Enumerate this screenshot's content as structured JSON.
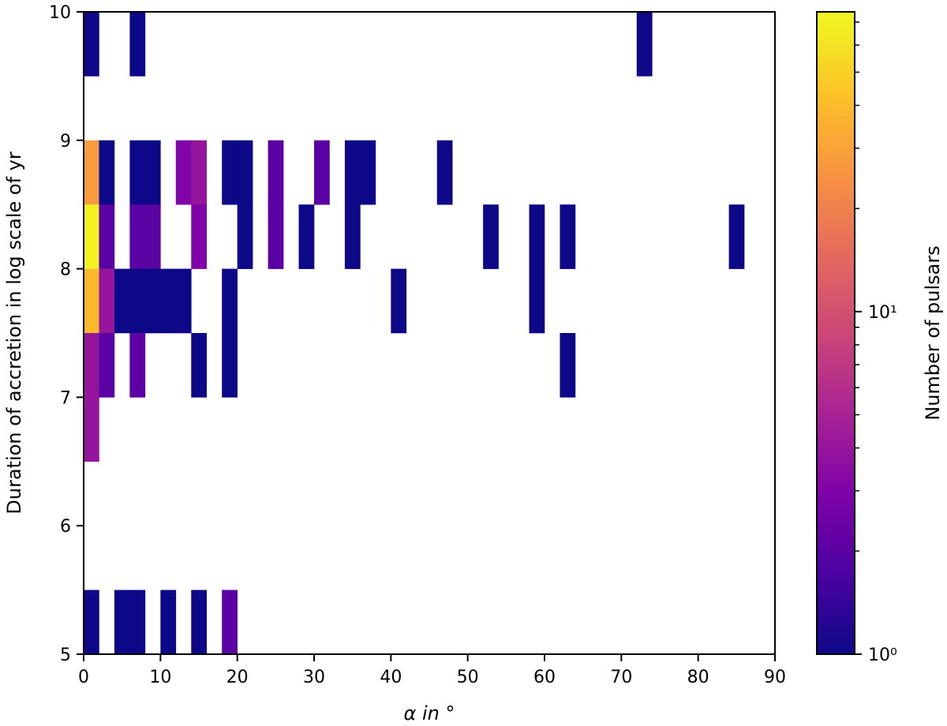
{
  "chart_data": {
    "type": "heatmap",
    "title": "",
    "xlabel": "α in °",
    "ylabel": "Duration of accretion in log scale of yr",
    "colorbar_label": "Number of pulsars",
    "colormap": "plasma",
    "color_scale": "log",
    "color_range": [
      1,
      75
    ],
    "colorbar_ticks": [
      {
        "value": 1,
        "label": "10⁰"
      },
      {
        "value": 10,
        "label": "10¹"
      }
    ],
    "xlim": [
      0,
      90
    ],
    "ylim": [
      5,
      10
    ],
    "xticks": [
      0,
      10,
      20,
      30,
      40,
      50,
      60,
      70,
      80,
      90
    ],
    "yticks": [
      5,
      6,
      7,
      8,
      9,
      10
    ],
    "x_bin_width": 2,
    "y_bin_width": 0.5,
    "grid": false,
    "cells": [
      {
        "x": 0,
        "y": 9.5,
        "count": 1
      },
      {
        "x": 6,
        "y": 9.5,
        "count": 1
      },
      {
        "x": 72,
        "y": 9.5,
        "count": 1
      },
      {
        "x": 0,
        "y": 8.5,
        "count": 28
      },
      {
        "x": 2,
        "y": 8.5,
        "count": 1
      },
      {
        "x": 6,
        "y": 8.5,
        "count": 1
      },
      {
        "x": 8,
        "y": 8.5,
        "count": 1
      },
      {
        "x": 12,
        "y": 8.5,
        "count": 3
      },
      {
        "x": 14,
        "y": 8.5,
        "count": 4
      },
      {
        "x": 18,
        "y": 8.5,
        "count": 1
      },
      {
        "x": 20,
        "y": 8.5,
        "count": 1
      },
      {
        "x": 24,
        "y": 8.5,
        "count": 2
      },
      {
        "x": 30,
        "y": 8.5,
        "count": 2
      },
      {
        "x": 34,
        "y": 8.5,
        "count": 1
      },
      {
        "x": 36,
        "y": 8.5,
        "count": 1
      },
      {
        "x": 46,
        "y": 8.5,
        "count": 1
      },
      {
        "x": 0,
        "y": 8.0,
        "count": 70
      },
      {
        "x": 2,
        "y": 8.0,
        "count": 2
      },
      {
        "x": 6,
        "y": 8.0,
        "count": 2
      },
      {
        "x": 8,
        "y": 8.0,
        "count": 2
      },
      {
        "x": 14,
        "y": 8.0,
        "count": 3
      },
      {
        "x": 20,
        "y": 8.0,
        "count": 1
      },
      {
        "x": 24,
        "y": 8.0,
        "count": 2
      },
      {
        "x": 28,
        "y": 8.0,
        "count": 1
      },
      {
        "x": 34,
        "y": 8.0,
        "count": 1
      },
      {
        "x": 52,
        "y": 8.0,
        "count": 1
      },
      {
        "x": 58,
        "y": 8.0,
        "count": 1
      },
      {
        "x": 62,
        "y": 8.0,
        "count": 1
      },
      {
        "x": 84,
        "y": 8.0,
        "count": 1
      },
      {
        "x": 0,
        "y": 7.5,
        "count": 40
      },
      {
        "x": 2,
        "y": 7.5,
        "count": 4
      },
      {
        "x": 4,
        "y": 7.5,
        "count": 1
      },
      {
        "x": 6,
        "y": 7.5,
        "count": 1
      },
      {
        "x": 8,
        "y": 7.5,
        "count": 1
      },
      {
        "x": 10,
        "y": 7.5,
        "count": 1
      },
      {
        "x": 12,
        "y": 7.5,
        "count": 1
      },
      {
        "x": 18,
        "y": 7.5,
        "count": 1
      },
      {
        "x": 40,
        "y": 7.5,
        "count": 1
      },
      {
        "x": 58,
        "y": 7.5,
        "count": 1
      },
      {
        "x": 0,
        "y": 7.0,
        "count": 4
      },
      {
        "x": 2,
        "y": 7.0,
        "count": 2
      },
      {
        "x": 6,
        "y": 7.0,
        "count": 2
      },
      {
        "x": 14,
        "y": 7.0,
        "count": 1
      },
      {
        "x": 18,
        "y": 7.0,
        "count": 1
      },
      {
        "x": 62,
        "y": 7.0,
        "count": 1
      },
      {
        "x": 0,
        "y": 6.5,
        "count": 4
      },
      {
        "x": 0,
        "y": 5.0,
        "count": 1
      },
      {
        "x": 4,
        "y": 5.0,
        "count": 1
      },
      {
        "x": 6,
        "y": 5.0,
        "count": 1
      },
      {
        "x": 10,
        "y": 5.0,
        "count": 1
      },
      {
        "x": 14,
        "y": 5.0,
        "count": 1
      },
      {
        "x": 18,
        "y": 5.0,
        "count": 2
      }
    ]
  }
}
